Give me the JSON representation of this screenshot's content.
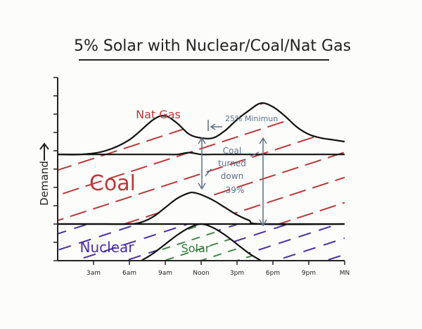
{
  "chart_data": {
    "type": "area",
    "title": "5% Solar with Nuclear/Coal/Nat Gas",
    "ylabel": "Demand",
    "xlabel": "",
    "x_ticks": [
      "3am",
      "6am",
      "9am",
      "Noon",
      "3pm",
      "6pm",
      "9pm",
      "MN"
    ],
    "x_range": [
      0,
      24
    ],
    "y_range": [
      0,
      100
    ],
    "series": [
      {
        "name": "Nuclear",
        "color": "#4a2fa0",
        "points": [
          [
            0,
            20
          ],
          [
            24,
            20
          ]
        ]
      },
      {
        "name": "Solar",
        "color": "#2f7a35",
        "points": [
          [
            7,
            0
          ],
          [
            8,
            4
          ],
          [
            9,
            9
          ],
          [
            10,
            14
          ],
          [
            11,
            18
          ],
          [
            12,
            20
          ],
          [
            13,
            18
          ],
          [
            14,
            14
          ],
          [
            15,
            9
          ],
          [
            16,
            4
          ],
          [
            17,
            0
          ]
        ]
      },
      {
        "name": "Coal",
        "color": "#b83a3a",
        "points": [
          [
            0,
            58
          ],
          [
            2,
            58
          ],
          [
            4,
            58
          ],
          [
            6,
            58
          ],
          [
            7,
            58
          ],
          [
            8,
            58
          ],
          [
            9,
            58
          ],
          [
            10,
            58
          ],
          [
            11,
            59
          ],
          [
            12,
            58
          ],
          [
            13,
            58
          ],
          [
            14,
            58
          ],
          [
            16,
            58
          ],
          [
            18,
            58
          ],
          [
            20,
            58
          ],
          [
            22,
            58
          ],
          [
            24,
            58
          ]
        ]
      },
      {
        "name": "Nat Gas",
        "color": "#b83a3a",
        "points": [
          [
            0,
            58
          ],
          [
            2,
            58
          ],
          [
            4,
            60
          ],
          [
            6,
            66
          ],
          [
            8,
            77
          ],
          [
            9,
            79
          ],
          [
            10,
            75
          ],
          [
            11,
            69
          ],
          [
            12,
            67
          ],
          [
            13,
            67
          ],
          [
            14,
            71
          ],
          [
            15,
            77
          ],
          [
            16,
            82
          ],
          [
            17,
            86
          ],
          [
            18,
            84
          ],
          [
            19,
            79
          ],
          [
            20,
            73
          ],
          [
            21,
            69
          ],
          [
            22,
            67
          ],
          [
            23,
            66
          ],
          [
            24,
            65
          ]
        ]
      }
    ],
    "coal_bottom_points": [
      [
        0,
        20
      ],
      [
        4,
        20
      ],
      [
        6,
        20
      ],
      [
        7,
        21
      ],
      [
        8,
        24
      ],
      [
        9,
        29
      ],
      [
        10,
        34
      ],
      [
        11,
        37
      ],
      [
        11.5,
        37
      ],
      [
        12,
        36
      ],
      [
        13,
        33
      ],
      [
        14,
        29
      ],
      [
        15,
        25
      ],
      [
        16,
        22
      ],
      [
        17,
        20
      ],
      [
        24,
        20
      ]
    ],
    "annotations": {
      "min_note": "25% Minimun",
      "coal_note": [
        "Coal",
        "turned",
        "down",
        "39%"
      ]
    }
  }
}
